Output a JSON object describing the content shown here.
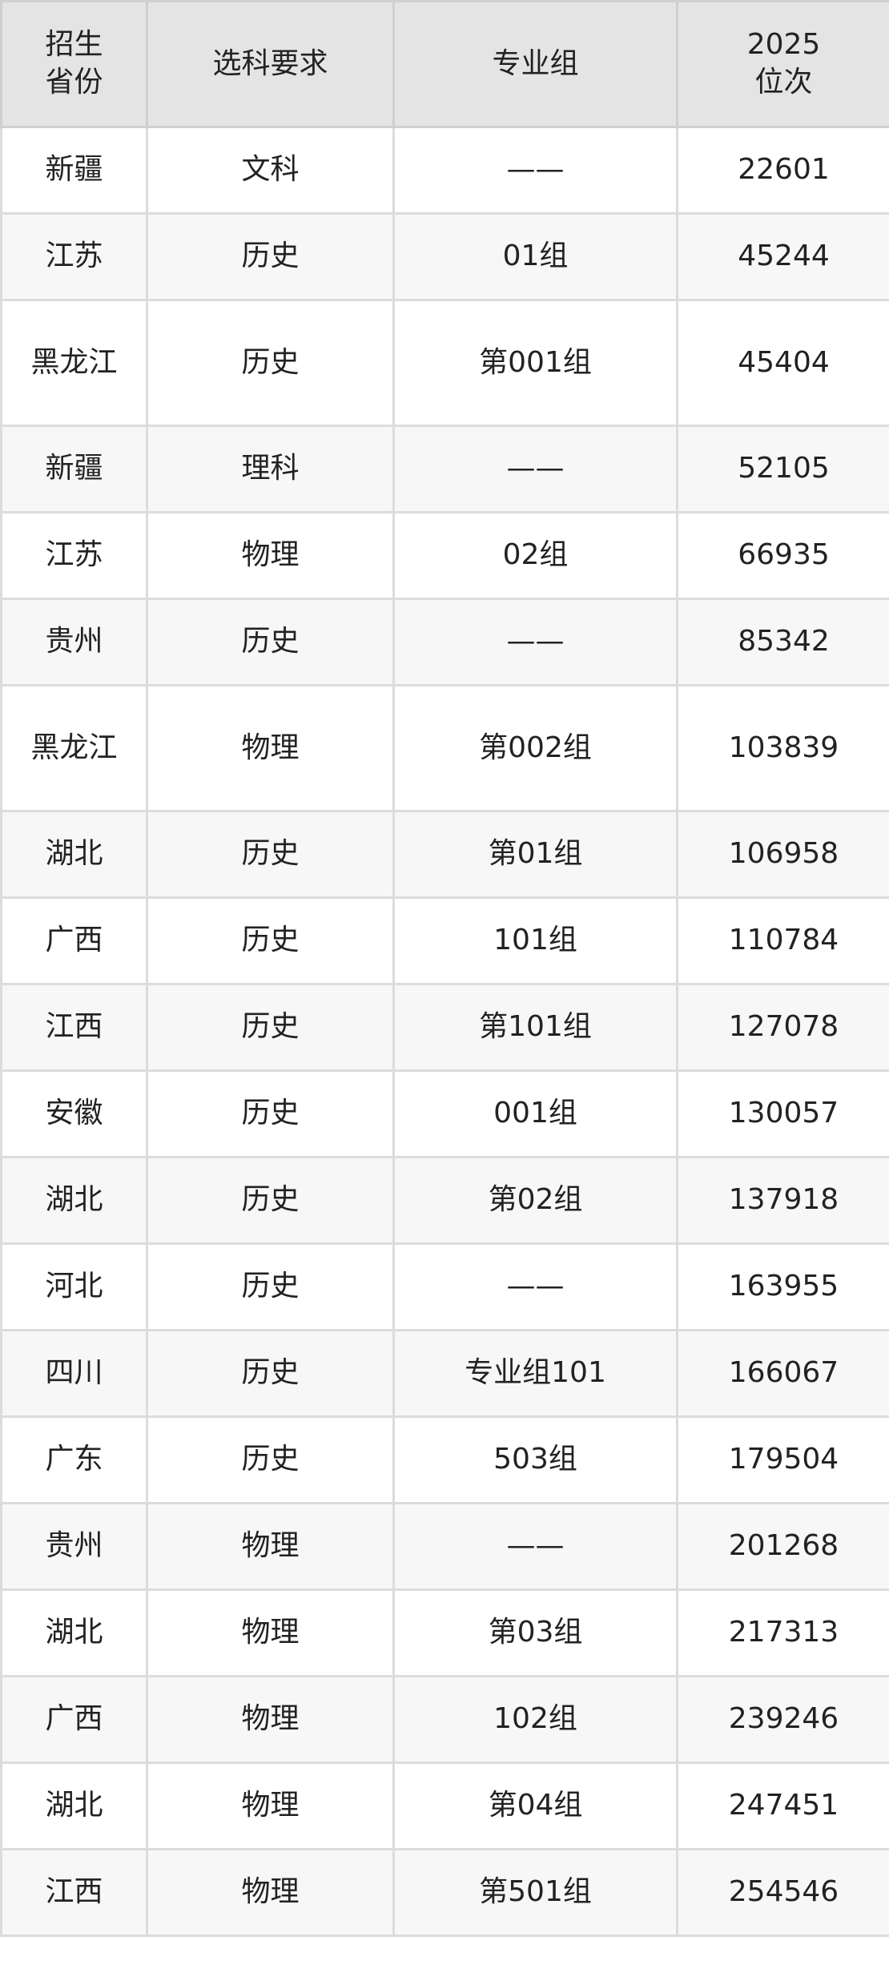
{
  "table": {
    "headers": [
      "招生\n省份",
      "选科要求",
      "专业组",
      "2025\n位次"
    ],
    "header_lines": [
      [
        "招生",
        "省份"
      ],
      [
        "选科要求"
      ],
      [
        "专业组"
      ],
      [
        "2025",
        "位次"
      ]
    ],
    "rows": [
      {
        "province": "新疆",
        "subject": "文科",
        "group": "——",
        "rank": "22601"
      },
      {
        "province": "江苏",
        "subject": "历史",
        "group": "01组",
        "rank": "45244"
      },
      {
        "province": "黑龙江",
        "subject": "历史",
        "group": "第001组",
        "rank": "45404"
      },
      {
        "province": "新疆",
        "subject": "理科",
        "group": "——",
        "rank": "52105"
      },
      {
        "province": "江苏",
        "subject": "物理",
        "group": "02组",
        "rank": "66935"
      },
      {
        "province": "贵州",
        "subject": "历史",
        "group": "——",
        "rank": "85342"
      },
      {
        "province": "黑龙江",
        "subject": "物理",
        "group": "第002组",
        "rank": "103839"
      },
      {
        "province": "湖北",
        "subject": "历史",
        "group": "第01组",
        "rank": "106958"
      },
      {
        "province": "广西",
        "subject": "历史",
        "group": "101组",
        "rank": "110784"
      },
      {
        "province": "江西",
        "subject": "历史",
        "group": "第101组",
        "rank": "127078"
      },
      {
        "province": "安徽",
        "subject": "历史",
        "group": "001组",
        "rank": "130057"
      },
      {
        "province": "湖北",
        "subject": "历史",
        "group": "第02组",
        "rank": "137918"
      },
      {
        "province": "河北",
        "subject": "历史",
        "group": "——",
        "rank": "163955"
      },
      {
        "province": "四川",
        "subject": "历史",
        "group": "专业组101",
        "rank": "166067"
      },
      {
        "province": "广东",
        "subject": "历史",
        "group": "503组",
        "rank": "179504"
      },
      {
        "province": "贵州",
        "subject": "物理",
        "group": "——",
        "rank": "201268"
      },
      {
        "province": "湖北",
        "subject": "物理",
        "group": "第03组",
        "rank": "217313"
      },
      {
        "province": "广西",
        "subject": "物理",
        "group": "102组",
        "rank": "239246"
      },
      {
        "province": "湖北",
        "subject": "物理",
        "group": "第04组",
        "rank": "247451"
      },
      {
        "province": "江西",
        "subject": "物理",
        "group": "第501组",
        "rank": "254546"
      }
    ]
  }
}
